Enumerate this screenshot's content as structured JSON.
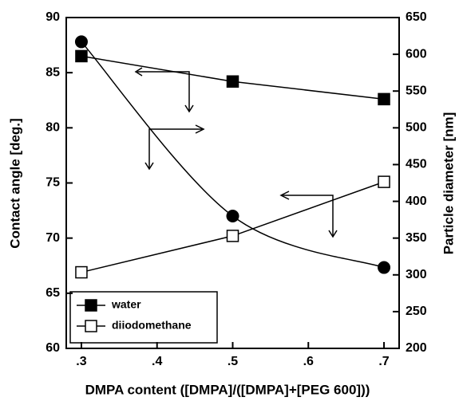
{
  "chart_data": {
    "type": "line",
    "x": [
      0.3,
      0.5,
      0.7
    ],
    "xlabel": "DMPA content ([DMPA]/([DMPA]+[PEG 600]))",
    "ylabel": "Contact angle [deg.]",
    "y2label": "Particle diameter [nm]",
    "xlim": [
      0.28,
      0.72
    ],
    "xticks": [
      {
        "value": 0.3,
        "label": ".3"
      },
      {
        "value": 0.4,
        "label": ".4"
      },
      {
        "value": 0.5,
        "label": ".5"
      },
      {
        "value": 0.6,
        "label": ".6"
      },
      {
        "value": 0.7,
        "label": ".7"
      }
    ],
    "ylim": [
      60,
      90
    ],
    "yticks": [
      60,
      65,
      70,
      75,
      80,
      85,
      90
    ],
    "y2lim": [
      200,
      650
    ],
    "y2ticks": [
      200,
      250,
      300,
      350,
      400,
      450,
      500,
      550,
      600,
      650
    ],
    "legend": "lower left",
    "series": [
      {
        "name": "water",
        "color": "#000",
        "marker": "filled-square",
        "values": [
          86.5,
          84.2,
          82.6
        ]
      },
      {
        "name": "diiodomethane",
        "color": "#000",
        "marker": "open-square",
        "values": [
          66.9,
          70.2,
          75.1
        ]
      },
      {
        "color": "#000",
        "marker": "filled-circle",
        "axis": "y2",
        "smooth": true,
        "values": [
          617,
          380,
          310
        ]
      }
    ]
  }
}
